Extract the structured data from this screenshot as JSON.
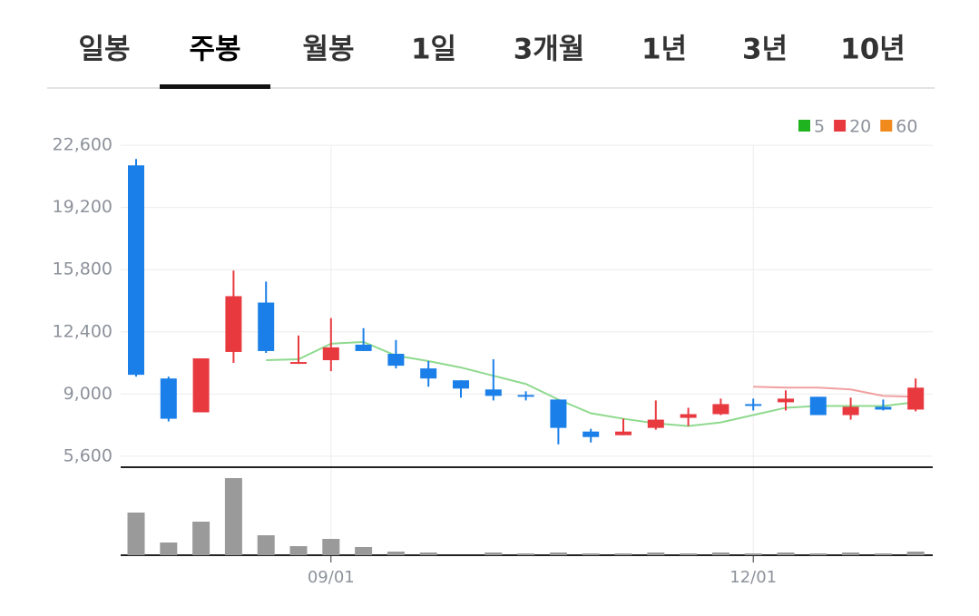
{
  "tabs": {
    "items": [
      "일봉",
      "주봉",
      "월봉",
      "1일",
      "3개월",
      "1년",
      "3년",
      "10년"
    ],
    "selected": 1
  },
  "chart_data": {
    "type": "candlestick",
    "categories": [
      null,
      null,
      null,
      null,
      null,
      null,
      "09/01",
      null,
      null,
      null,
      null,
      null,
      null,
      null,
      null,
      null,
      null,
      null,
      null,
      "12/01",
      null,
      null,
      null,
      null,
      null
    ],
    "open": [
      21500,
      9850,
      8000,
      11300,
      14000,
      10650,
      10850,
      11700,
      11200,
      10400,
      9750,
      9250,
      8950,
      8700,
      6950,
      6750,
      7150,
      7700,
      7900,
      8450,
      8550,
      8850,
      7850,
      8300,
      8150
    ],
    "high": [
      21850,
      9950,
      10950,
      15750,
      15150,
      12200,
      13150,
      12600,
      11950,
      10800,
      9750,
      10900,
      9150,
      8700,
      7100,
      7650,
      8650,
      8250,
      8750,
      8750,
      9200,
      8850,
      8800,
      8700,
      9850
    ],
    "low": [
      9950,
      7500,
      8000,
      10700,
      11250,
      10650,
      10250,
      11350,
      10400,
      9400,
      8800,
      8650,
      8650,
      6250,
      6350,
      6750,
      7050,
      7250,
      7850,
      8100,
      8100,
      7850,
      7600,
      8100,
      8050
    ],
    "close": [
      10050,
      7650,
      10950,
      14350,
      11350,
      10750,
      11550,
      11350,
      10550,
      9850,
      9300,
      8900,
      8900,
      7150,
      6650,
      6950,
      7600,
      7900,
      8450,
      8400,
      8750,
      7850,
      8300,
      8150,
      9350
    ],
    "up_color": "#e8393f",
    "down_color": "#1a7fe8",
    "volume": [
      47,
      14,
      37,
      85,
      22,
      10,
      18,
      9,
      4,
      3,
      0,
      3,
      2,
      3,
      2,
      2,
      3,
      2,
      3,
      2,
      3,
      2,
      3,
      2,
      4
    ],
    "volume_color": "#9a9a9a",
    "series": [
      {
        "name": "5",
        "color": "#1fb41f",
        "line_color": "#8fd98f",
        "values": [
          null,
          null,
          null,
          null,
          10850,
          10900,
          11750,
          11850,
          11100,
          10800,
          10450,
          10000,
          9550,
          8700,
          7950,
          7650,
          7400,
          7250,
          7450,
          7850,
          8250,
          8350,
          8350,
          8350,
          8550
        ]
      },
      {
        "name": "20",
        "color": "#e8393f",
        "line_color": "#f2a0a0",
        "values": [
          null,
          null,
          null,
          null,
          null,
          null,
          null,
          null,
          null,
          null,
          null,
          null,
          null,
          null,
          null,
          null,
          null,
          null,
          null,
          9400,
          9350,
          9350,
          9250,
          8900,
          8850
        ]
      },
      {
        "name": "60",
        "color": "#f08a1c",
        "line_color": "#f5b97a",
        "values": [
          null,
          null,
          null,
          null,
          null,
          null,
          null,
          null,
          null,
          null,
          null,
          null,
          null,
          null,
          null,
          null,
          null,
          null,
          null,
          null,
          null,
          null,
          null,
          null,
          null
        ]
      }
    ],
    "ylim": [
      5000,
      23100
    ],
    "yticks": [
      {
        "value": 22600,
        "label": "22,600"
      },
      {
        "value": 19200,
        "label": "19,200"
      },
      {
        "value": 15800,
        "label": "15,800"
      },
      {
        "value": 12400,
        "label": "12,400"
      },
      {
        "value": 9000,
        "label": "9,000"
      },
      {
        "value": 5600,
        "label": "5,600"
      }
    ],
    "grid": true
  }
}
